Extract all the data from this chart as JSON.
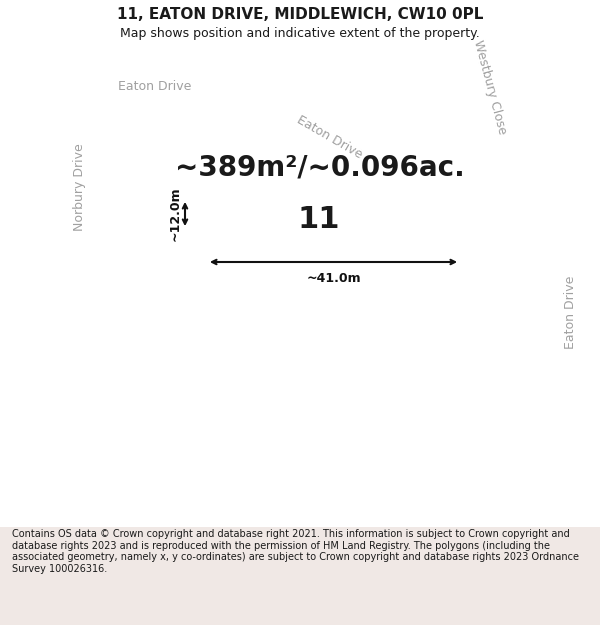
{
  "title": "11, EATON DRIVE, MIDDLEWICH, CW10 0PL",
  "subtitle": "Map shows position and indicative extent of the property.",
  "footer": "Contains OS data © Crown copyright and database right 2021. This information is subject to Crown copyright and database rights 2023 and is reproduced with the permission of HM Land Registry. The polygons (including the associated geometry, namely x, y co-ordinates) are subject to Crown copyright and database rights 2023 Ordnance Survey 100026316.",
  "area_label": "~389m²/~0.096ac.",
  "width_label": "~41.0m",
  "height_label": "~12.0m",
  "plot_number": "11",
  "map_bg": "#f7f6f4",
  "road_line_color": "#e8b0a8",
  "road_fill_color": "#f0e8e5",
  "building_fill": "#d8d5d0",
  "building_edge": "#c0bcb8",
  "green_fill": "#d8e8d5",
  "highlight_fill": "#ffffff",
  "highlight_edge": "#ff0000",
  "text_color": "#1a1a1a",
  "road_label_color": "#a0a0a0",
  "dim_color": "#111111",
  "title_fontsize": 11,
  "subtitle_fontsize": 9,
  "footer_fontsize": 7.0,
  "area_fontsize": 20,
  "plot_num_fontsize": 22,
  "dim_label_fontsize": 9,
  "road_label_fontsize": 9
}
